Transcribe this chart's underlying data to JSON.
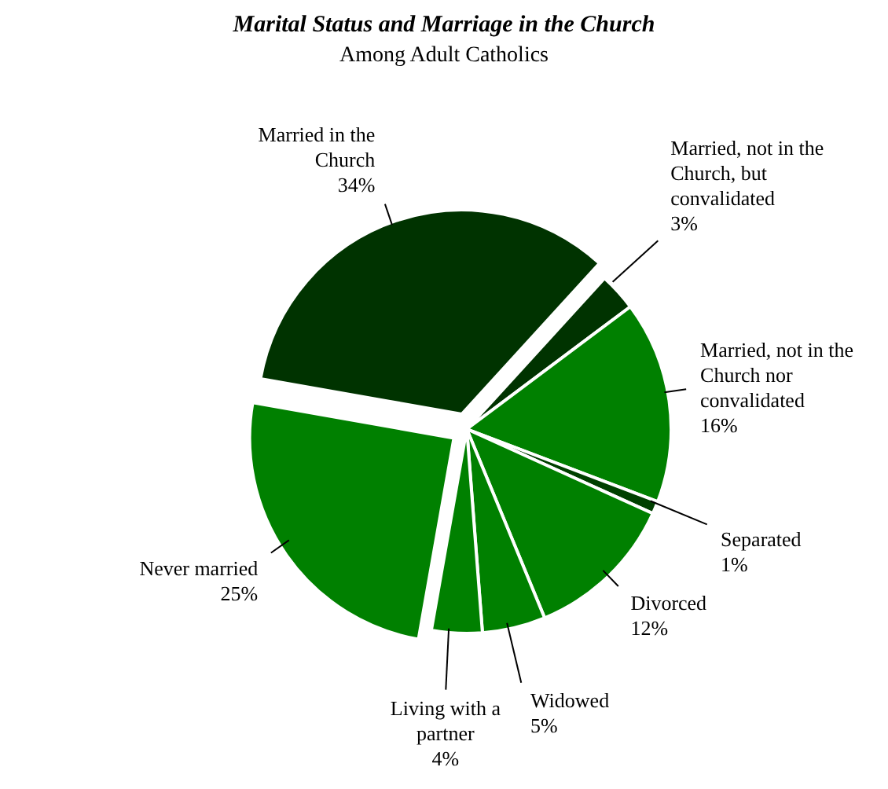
{
  "chart_data": {
    "type": "pie",
    "title": "Marital Status and Marriage in the Church",
    "subtitle": "Among Adult Catholics",
    "categories": [
      "Married in the Church",
      "Married, not in the Church, but convalidated",
      "Married, not in the Church nor convalidated",
      "Separated",
      "Divorced",
      "Widowed",
      "Living with a partner",
      "Never married"
    ],
    "values": [
      34,
      3,
      16,
      1,
      12,
      5,
      4,
      25
    ],
    "value_labels": [
      "34%",
      "3%",
      "16%",
      "1%",
      "12%",
      "5%",
      "4%",
      "25%"
    ],
    "colors": [
      "#003300",
      "#003300",
      "#008000",
      "#004000",
      "#008000",
      "#008000",
      "#008000",
      "#008000"
    ],
    "legend": false
  }
}
